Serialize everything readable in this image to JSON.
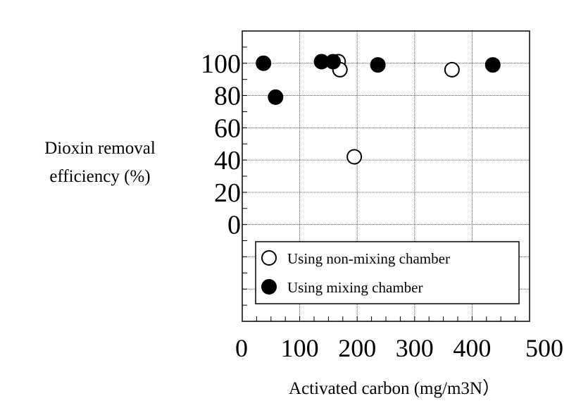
{
  "chart_data": {
    "type": "scatter",
    "title": "",
    "xlabel": "Activated carbon (mg/m3N）",
    "ylabel_lines": [
      "Dioxin removal",
      "efficiency (%)"
    ],
    "xlim": [
      0,
      500
    ],
    "ylim": [
      -60,
      120
    ],
    "xticks": [
      "0",
      "100",
      "200",
      "300",
      "400",
      "500"
    ],
    "yticks": [
      "0",
      "20",
      "40",
      "60",
      "80",
      "100"
    ],
    "grid": true,
    "legend_position": "bottom",
    "series": [
      {
        "name": "Using non-mixing chamber",
        "marker": "open-circle",
        "points": [
          {
            "x": 167,
            "y": 101
          },
          {
            "x": 170,
            "y": 96
          },
          {
            "x": 195,
            "y": 42
          },
          {
            "x": 365,
            "y": 96
          }
        ]
      },
      {
        "name": "Using mixing chamber",
        "marker": "filled-circle",
        "points": [
          {
            "x": 37,
            "y": 100
          },
          {
            "x": 58,
            "y": 79
          },
          {
            "x": 138,
            "y": 101
          },
          {
            "x": 158,
            "y": 101
          },
          {
            "x": 236,
            "y": 99
          },
          {
            "x": 436,
            "y": 99
          }
        ]
      }
    ]
  }
}
